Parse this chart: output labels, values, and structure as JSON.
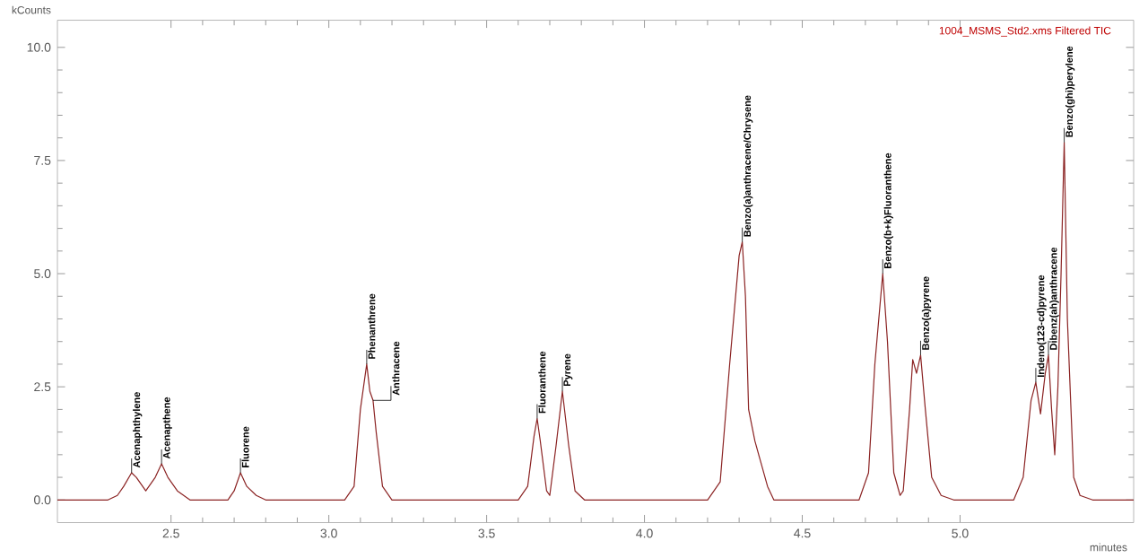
{
  "chart_data": {
    "type": "line",
    "title": "1004_MSMS_Std2.xms Filtered TIC",
    "xlabel": "minutes",
    "ylabel": "kCounts",
    "xlim": [
      2.14,
      5.55
    ],
    "ylim": [
      -0.5,
      10.6
    ],
    "xticks": [
      {
        "value": 2.5,
        "label": "2.5"
      },
      {
        "value": 3.0,
        "label": "3.0"
      },
      {
        "value": 3.5,
        "label": "3.5"
      },
      {
        "value": 4.0,
        "label": "4.0"
      },
      {
        "value": 4.5,
        "label": "4.5"
      },
      {
        "value": 5.0,
        "label": "5.0"
      }
    ],
    "yticks": [
      {
        "value": 0,
        "label": "0.0"
      },
      {
        "value": 2.5,
        "label": "2.5"
      },
      {
        "value": 5.0,
        "label": "5.0"
      },
      {
        "value": 7.5,
        "label": "7.5"
      },
      {
        "value": 10.0,
        "label": "10.0"
      }
    ],
    "grid": false,
    "marker": "none",
    "line_style": "solid",
    "series": [
      {
        "color": "#8b2323",
        "x": [
          2.14,
          2.3,
          2.33,
          2.35,
          2.375,
          2.39,
          2.42,
          2.45,
          2.47,
          2.49,
          2.52,
          2.56,
          2.6,
          2.68,
          2.7,
          2.72,
          2.74,
          2.77,
          2.8,
          3.05,
          3.08,
          3.1,
          3.12,
          3.13,
          3.14,
          3.15,
          3.17,
          3.2,
          3.23,
          3.6,
          3.63,
          3.65,
          3.66,
          3.67,
          3.69,
          3.7,
          3.72,
          3.74,
          3.76,
          3.78,
          3.81,
          4.2,
          4.24,
          4.27,
          4.3,
          4.31,
          4.32,
          4.33,
          4.35,
          4.37,
          4.39,
          4.41,
          4.45,
          4.68,
          4.71,
          4.73,
          4.755,
          4.77,
          4.79,
          4.81,
          4.82,
          4.84,
          4.85,
          4.862,
          4.875,
          4.89,
          4.91,
          4.94,
          4.98,
          5.17,
          5.2,
          5.225,
          5.24,
          5.255,
          5.27,
          5.28,
          5.29,
          5.3,
          5.31,
          5.32,
          5.33,
          5.34,
          5.36,
          5.38,
          5.42,
          5.55
        ],
        "values": [
          0,
          0,
          0.1,
          0.3,
          0.6,
          0.5,
          0.2,
          0.5,
          0.8,
          0.5,
          0.2,
          0,
          0,
          0,
          0.2,
          0.6,
          0.3,
          0.1,
          0,
          0,
          0.3,
          2.0,
          3.0,
          2.4,
          2.2,
          1.5,
          0.3,
          0,
          0,
          0,
          0.3,
          1.4,
          1.8,
          1.3,
          0.2,
          0.1,
          1.2,
          2.4,
          1.2,
          0.2,
          0,
          0,
          0.4,
          3.0,
          5.4,
          5.7,
          4.5,
          2.0,
          1.3,
          0.8,
          0.3,
          0,
          0,
          0,
          0.6,
          3.0,
          5.0,
          3.5,
          0.6,
          0.1,
          0.2,
          2.0,
          3.1,
          2.8,
          3.2,
          2.0,
          0.5,
          0.1,
          0,
          0,
          0.5,
          2.2,
          2.6,
          1.9,
          2.8,
          3.2,
          2.0,
          1.0,
          2.5,
          5.0,
          7.9,
          4.0,
          0.5,
          0.1,
          0,
          0
        ]
      }
    ],
    "annotations": [
      {
        "text": "Acenaphthylene",
        "x": 2.375,
        "y": 0.6
      },
      {
        "text": "Acenapthene",
        "x": 2.47,
        "y": 0.8
      },
      {
        "text": "Fluorene",
        "x": 2.72,
        "y": 0.6
      },
      {
        "text": "Phenanthrene",
        "x": 3.12,
        "y": 3.0
      },
      {
        "text": "Anthracene",
        "x": 3.14,
        "y": 2.2
      },
      {
        "text": "Fluoranthene",
        "x": 3.66,
        "y": 1.8
      },
      {
        "text": "Pyrene",
        "x": 3.74,
        "y": 2.4
      },
      {
        "text": "Benzo(a)anthracene/Chrysene",
        "x": 4.31,
        "y": 5.7
      },
      {
        "text": "Benzo(b+k)Fluoranthene",
        "x": 4.755,
        "y": 5.0
      },
      {
        "text": "Benzo(a)pyrene",
        "x": 4.875,
        "y": 3.2
      },
      {
        "text": "Indeno(123-cd)pyrene",
        "x": 5.24,
        "y": 2.6
      },
      {
        "text": "Dibenz(ah)anthracene",
        "x": 5.28,
        "y": 3.2
      },
      {
        "text": "Benzo(ghi)perylene",
        "x": 5.33,
        "y": 7.9
      }
    ]
  }
}
